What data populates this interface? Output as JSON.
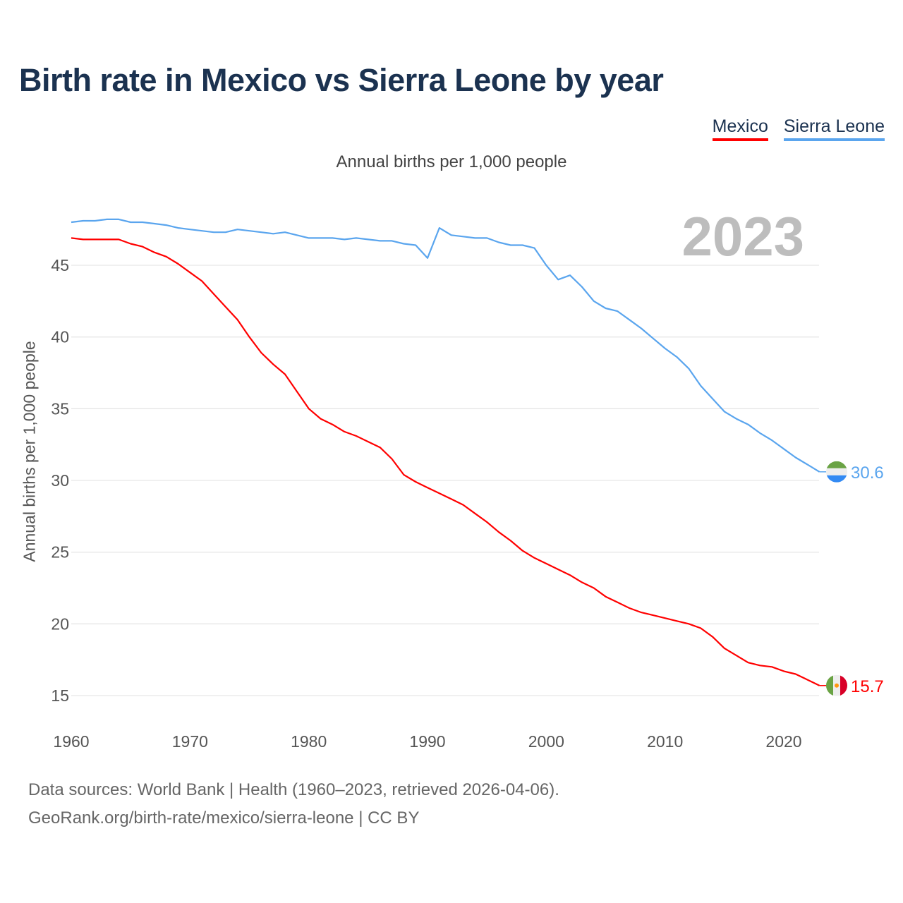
{
  "chart_data": {
    "type": "line",
    "title": "Birth rate in Mexico vs Sierra Leone by year",
    "subtitle": "Annual births per 1,000 people",
    "xlabel": "",
    "ylabel": "Annual births per 1,000 people",
    "xlim": [
      1960,
      2023
    ],
    "ylim": [
      13.5,
      49
    ],
    "yticks": [
      15,
      20,
      25,
      30,
      35,
      40,
      45
    ],
    "xticks": [
      1960,
      1970,
      1980,
      1990,
      2000,
      2010,
      2020
    ],
    "grid": true,
    "legend_position": "top-right",
    "current_year": "2023",
    "x": [
      1960,
      1961,
      1962,
      1963,
      1964,
      1965,
      1966,
      1967,
      1968,
      1969,
      1970,
      1971,
      1972,
      1973,
      1974,
      1975,
      1976,
      1977,
      1978,
      1979,
      1980,
      1981,
      1982,
      1983,
      1984,
      1985,
      1986,
      1987,
      1988,
      1989,
      1990,
      1991,
      1992,
      1993,
      1994,
      1995,
      1996,
      1997,
      1998,
      1999,
      2000,
      2001,
      2002,
      2003,
      2004,
      2005,
      2006,
      2007,
      2008,
      2009,
      2010,
      2011,
      2012,
      2013,
      2014,
      2015,
      2016,
      2017,
      2018,
      2019,
      2020,
      2021,
      2022,
      2023
    ],
    "series": [
      {
        "name": "Mexico",
        "color": "#ff0000",
        "end_label": "15.7",
        "flag": "mexico-flag",
        "values": [
          46.9,
          46.8,
          46.8,
          46.8,
          46.8,
          46.5,
          46.3,
          45.9,
          45.6,
          45.1,
          44.5,
          43.9,
          43.0,
          42.1,
          41.2,
          40.0,
          38.9,
          38.1,
          37.4,
          36.2,
          35.0,
          34.3,
          33.9,
          33.4,
          33.1,
          32.7,
          32.3,
          31.5,
          30.4,
          29.9,
          29.5,
          29.1,
          28.7,
          28.3,
          27.7,
          27.1,
          26.4,
          25.8,
          25.1,
          24.6,
          24.2,
          23.8,
          23.4,
          22.9,
          22.5,
          21.9,
          21.5,
          21.1,
          20.8,
          20.6,
          20.4,
          20.2,
          20.0,
          19.7,
          19.1,
          18.3,
          17.8,
          17.3,
          17.1,
          17.0,
          16.7,
          16.5,
          16.1,
          15.7
        ]
      },
      {
        "name": "Sierra Leone",
        "color": "#5aa5ee",
        "end_label": "30.6",
        "flag": "sierra-leone-flag",
        "values": [
          48.0,
          48.1,
          48.1,
          48.2,
          48.2,
          48.0,
          48.0,
          47.9,
          47.8,
          47.6,
          47.5,
          47.4,
          47.3,
          47.3,
          47.5,
          47.4,
          47.3,
          47.2,
          47.3,
          47.1,
          46.9,
          46.9,
          46.9,
          46.8,
          46.9,
          46.8,
          46.7,
          46.7,
          46.5,
          46.4,
          45.5,
          47.6,
          47.1,
          47.0,
          46.9,
          46.9,
          46.6,
          46.4,
          46.4,
          46.2,
          45.0,
          44.0,
          44.3,
          43.5,
          42.5,
          42.0,
          41.8,
          41.2,
          40.6,
          39.9,
          39.2,
          38.6,
          37.8,
          36.6,
          35.7,
          34.8,
          34.3,
          33.9,
          33.3,
          32.8,
          32.2,
          31.6,
          31.1,
          30.6
        ]
      }
    ]
  },
  "footer": {
    "sources": "Data sources: World Bank | Health (1960–2023, retrieved 2026-04-06).",
    "link": "GeoRank.org/birth-rate/mexico/sierra-leone | CC BY"
  }
}
